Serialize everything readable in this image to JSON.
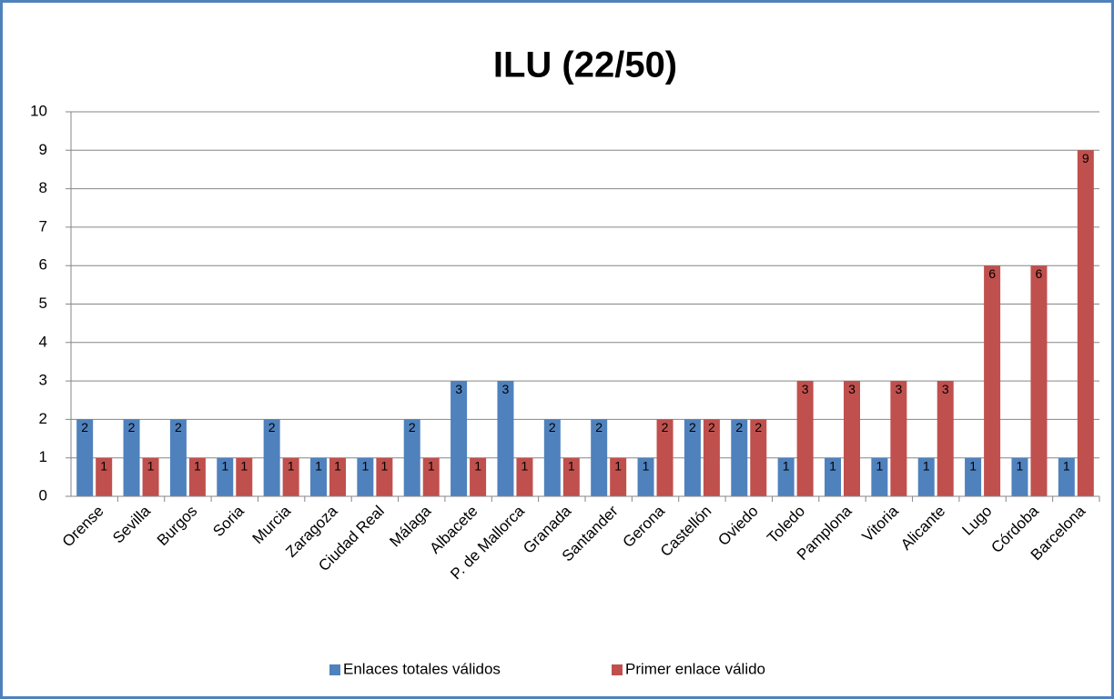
{
  "chart_data": {
    "type": "bar",
    "title": "ILU (22/50)",
    "categories": [
      "Orense",
      "Sevilla",
      "Burgos",
      "Soria",
      "Murcia",
      "Zaragoza",
      "Ciudad Real",
      "Málaga",
      "Albacete",
      "P. de Mallorca",
      "Granada",
      "Santander",
      "Gerona",
      "Castellón",
      "Oviedo",
      "Toledo",
      "Pamplona",
      "Vitoria",
      "Alicante",
      "Lugo",
      "Córdoba",
      "Barcelona"
    ],
    "series": [
      {
        "name": "Enlaces totales válidos",
        "color": "#4f81bd",
        "values": [
          2,
          2,
          2,
          1,
          2,
          1,
          1,
          2,
          3,
          3,
          2,
          2,
          1,
          2,
          2,
          1,
          1,
          1,
          1,
          1,
          1,
          1
        ]
      },
      {
        "name": "Primer enlace válido",
        "color": "#c0504d",
        "values": [
          1,
          1,
          1,
          1,
          1,
          1,
          1,
          1,
          1,
          1,
          1,
          1,
          2,
          2,
          2,
          3,
          3,
          3,
          3,
          6,
          6,
          9
        ]
      }
    ],
    "ylim": [
      0,
      10
    ],
    "yticks": [
      0,
      1,
      2,
      3,
      4,
      5,
      6,
      7,
      8,
      9,
      10
    ],
    "grid": true,
    "data_labels": true,
    "legend": "bottom"
  }
}
